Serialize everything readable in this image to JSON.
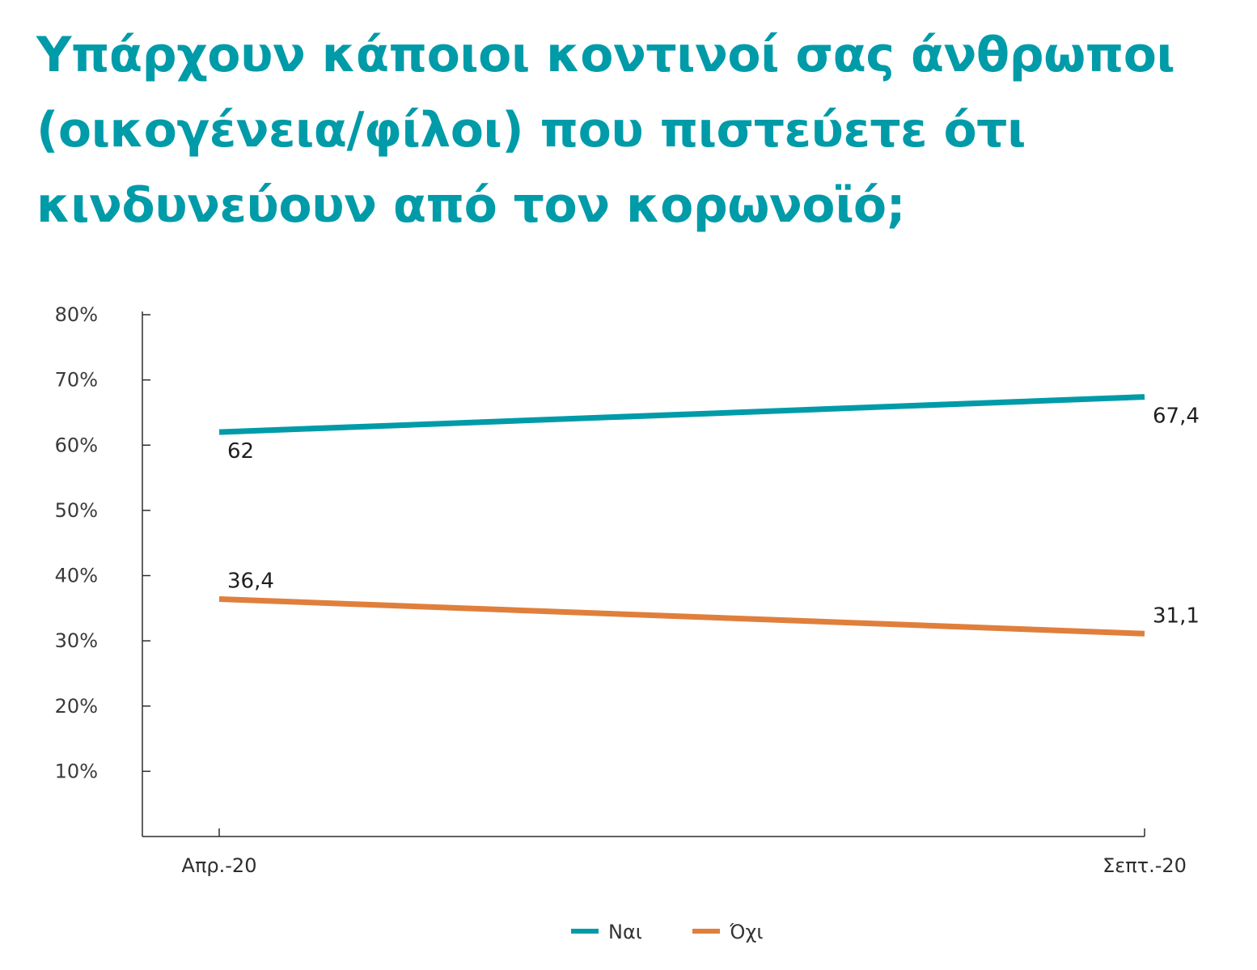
{
  "title_lines": [
    "Υπάρχουν κάποιοι κοντινοί σας άνθρωποι",
    "(οικογένεια/φίλοι) που πιστεύετε ότι",
    "κινδυνεύουν από τον κορωνοϊό;"
  ],
  "colors": {
    "title": "#009ba8",
    "nai": "#009ba8",
    "oxi": "#e07f3c",
    "axis": "#2e2e2e"
  },
  "chart_data": {
    "type": "line",
    "categories": [
      "Απρ.-20",
      "Σεπτ.-20"
    ],
    "series": [
      {
        "name": "Ναι",
        "values": [
          62,
          67.4
        ],
        "labels": [
          "62",
          "67,4"
        ],
        "color": "#009ba8"
      },
      {
        "name": "Όχι",
        "values": [
          36.4,
          31.1
        ],
        "labels": [
          "36,4",
          "31,1"
        ],
        "color": "#e07f3c"
      }
    ],
    "ylim": [
      0,
      80
    ],
    "yticks": [
      10,
      20,
      30,
      40,
      50,
      60,
      70,
      80
    ],
    "ytick_labels": [
      "10%",
      "20%",
      "30%",
      "40%",
      "50%",
      "60%",
      "70%",
      "80%"
    ],
    "legend_position": "bottom-center",
    "grid": false
  }
}
